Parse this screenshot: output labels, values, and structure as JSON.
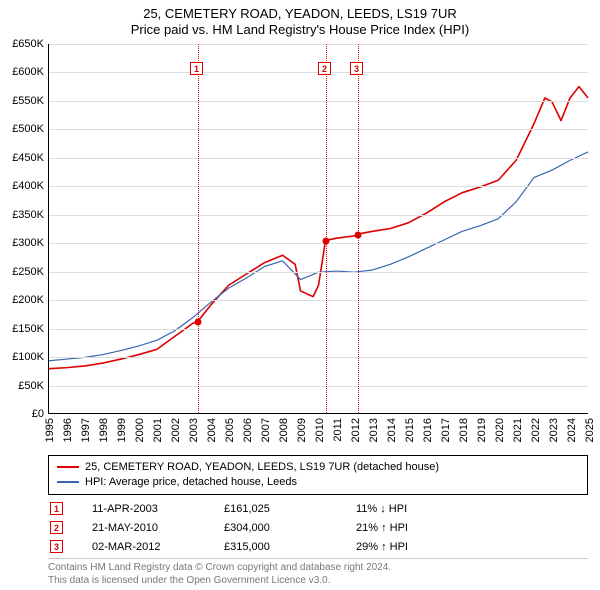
{
  "title": {
    "line1": "25, CEMETERY ROAD, YEADON, LEEDS, LS19 7UR",
    "line2": "Price paid vs. HM Land Registry's House Price Index (HPI)"
  },
  "chart": {
    "type": "line",
    "x_domain_years": [
      1995,
      2025
    ],
    "y_domain": [
      0,
      650000
    ],
    "y_tick_step": 50000,
    "y_tick_prefix": "£",
    "y_tick_suffix": "K",
    "grid_color": "#dddddd",
    "axis_color": "#000000",
    "background_color": "#ffffff",
    "axis_fontsize": 11,
    "title_fontsize": 13,
    "series": [
      {
        "id": "property",
        "label": "25, CEMETERY ROAD, YEADON, LEEDS, LS19 7UR (detached house)",
        "color": "#dc0000",
        "line_width": 1.6,
        "points": [
          [
            1995.0,
            78000
          ],
          [
            1996.0,
            80000
          ],
          [
            1997.0,
            83000
          ],
          [
            1998.0,
            88000
          ],
          [
            1999.0,
            95000
          ],
          [
            2000.0,
            103000
          ],
          [
            2001.0,
            112000
          ],
          [
            2002.0,
            135000
          ],
          [
            2003.0,
            158000
          ],
          [
            2003.28,
            161025
          ],
          [
            2004.0,
            190000
          ],
          [
            2005.0,
            225000
          ],
          [
            2006.0,
            245000
          ],
          [
            2007.0,
            265000
          ],
          [
            2008.0,
            278000
          ],
          [
            2008.7,
            262000
          ],
          [
            2009.0,
            215000
          ],
          [
            2009.7,
            205000
          ],
          [
            2010.0,
            225000
          ],
          [
            2010.2,
            265000
          ],
          [
            2010.39,
            304000
          ],
          [
            2011.0,
            308000
          ],
          [
            2012.0,
            312000
          ],
          [
            2012.17,
            315000
          ],
          [
            2013.0,
            320000
          ],
          [
            2014.0,
            325000
          ],
          [
            2015.0,
            335000
          ],
          [
            2016.0,
            352000
          ],
          [
            2017.0,
            372000
          ],
          [
            2018.0,
            388000
          ],
          [
            2019.0,
            398000
          ],
          [
            2020.0,
            410000
          ],
          [
            2021.0,
            445000
          ],
          [
            2022.0,
            510000
          ],
          [
            2022.6,
            555000
          ],
          [
            2023.0,
            548000
          ],
          [
            2023.5,
            515000
          ],
          [
            2024.0,
            555000
          ],
          [
            2024.5,
            575000
          ],
          [
            2025.0,
            555000
          ]
        ]
      },
      {
        "id": "hpi",
        "label": "HPI: Average price, detached house, Leeds",
        "color": "#3a66b0",
        "line_width": 1.2,
        "points": [
          [
            1995.0,
            92000
          ],
          [
            1996.0,
            95000
          ],
          [
            1997.0,
            98000
          ],
          [
            1998.0,
            103000
          ],
          [
            1999.0,
            110000
          ],
          [
            2000.0,
            118000
          ],
          [
            2001.0,
            128000
          ],
          [
            2002.0,
            145000
          ],
          [
            2003.0,
            168000
          ],
          [
            2004.0,
            195000
          ],
          [
            2005.0,
            220000
          ],
          [
            2006.0,
            238000
          ],
          [
            2007.0,
            258000
          ],
          [
            2008.0,
            268000
          ],
          [
            2009.0,
            235000
          ],
          [
            2010.0,
            248000
          ],
          [
            2011.0,
            250000
          ],
          [
            2012.0,
            248000
          ],
          [
            2013.0,
            252000
          ],
          [
            2014.0,
            262000
          ],
          [
            2015.0,
            275000
          ],
          [
            2016.0,
            290000
          ],
          [
            2017.0,
            305000
          ],
          [
            2018.0,
            320000
          ],
          [
            2019.0,
            330000
          ],
          [
            2020.0,
            342000
          ],
          [
            2021.0,
            372000
          ],
          [
            2022.0,
            415000
          ],
          [
            2023.0,
            428000
          ],
          [
            2024.0,
            445000
          ],
          [
            2025.0,
            460000
          ]
        ]
      }
    ],
    "events": [
      {
        "n": "1",
        "year": 2003.28,
        "value": 161025,
        "marker_top_offset": 18
      },
      {
        "n": "2",
        "year": 2010.39,
        "value": 304000,
        "marker_top_offset": 18
      },
      {
        "n": "3",
        "year": 2012.17,
        "value": 315000,
        "marker_top_offset": 18
      }
    ],
    "event_line_color": "#dc0000",
    "dot_color": "#dc0000"
  },
  "legend": {
    "rows": [
      {
        "color": "#dc0000",
        "label": "25, CEMETERY ROAD, YEADON, LEEDS, LS19 7UR (detached house)"
      },
      {
        "color": "#3a66b0",
        "label": "HPI: Average price, detached house, Leeds"
      }
    ]
  },
  "events_table": [
    {
      "n": "1",
      "date": "11-APR-2003",
      "price": "£161,025",
      "diff": "11% ↓ HPI"
    },
    {
      "n": "2",
      "date": "21-MAY-2010",
      "price": "£304,000",
      "diff": "21% ↑ HPI"
    },
    {
      "n": "3",
      "date": "02-MAR-2012",
      "price": "£315,000",
      "diff": "29% ↑ HPI"
    }
  ],
  "attribution": {
    "line1": "Contains HM Land Registry data © Crown copyright and database right 2024.",
    "line2": "This data is licensed under the Open Government Licence v3.0."
  }
}
